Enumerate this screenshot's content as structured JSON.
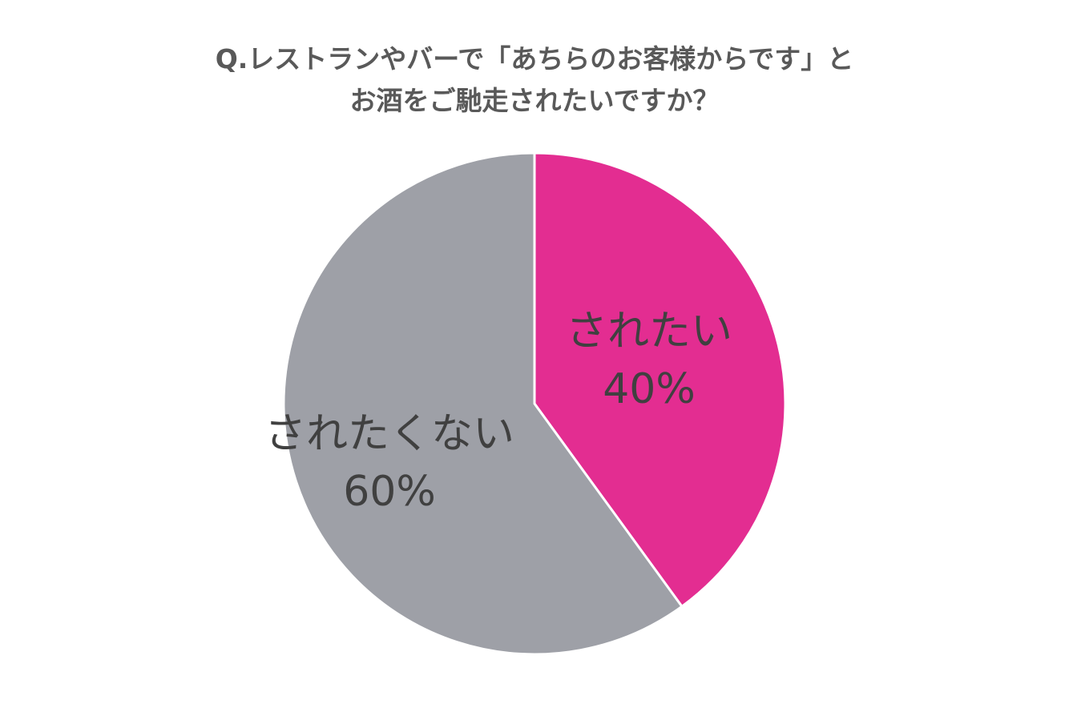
{
  "chart_data": {
    "type": "pie",
    "title_lines": [
      "Q.レストランやバーで「あちらのお客様からです」と",
      "お酒をご馳走されたいですか？"
    ],
    "slices": [
      {
        "label": "されたい",
        "value": 40,
        "value_label": "40%",
        "color": "#e32d91"
      },
      {
        "label": "されたくない",
        "value": 60,
        "value_label": "60%",
        "color": "#9ea0a7"
      }
    ],
    "start_angle": "12 o'clock",
    "direction": "clockwise",
    "legend": "none"
  }
}
